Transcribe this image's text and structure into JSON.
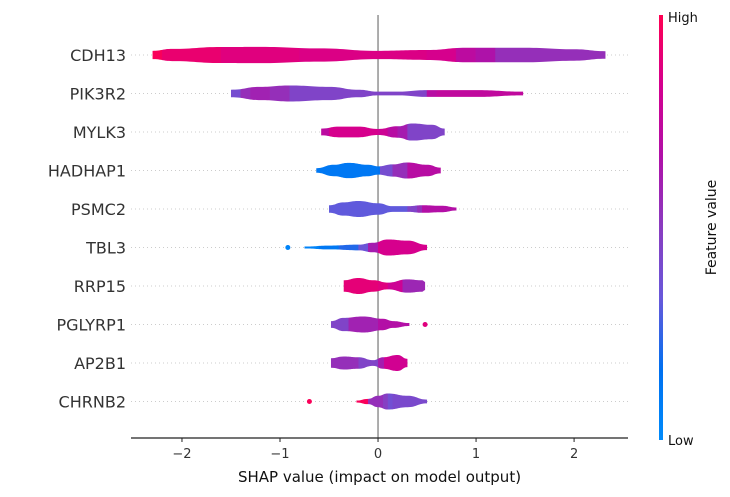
{
  "chart_data": {
    "type": "violin",
    "title": "",
    "xlabel": "SHAP value (impact on model output)",
    "ylabel": "",
    "xlim": [
      -2.52,
      2.55
    ],
    "xticks": [
      -2,
      -1,
      0,
      1,
      2
    ],
    "xtick_labels": [
      "−2",
      "−1",
      "0",
      "1",
      "2"
    ],
    "zero_line": true,
    "grid": "dotted horizontal row guides",
    "colorbar": {
      "title": "Feature value",
      "high_label": "High",
      "low_label": "Low",
      "placement": "right",
      "colors": [
        "#008bfb",
        "#0070f0",
        "#6858da",
        "#8a3cc0",
        "#b010a8",
        "#d4008f",
        "#ff0052"
      ]
    },
    "features": [
      {
        "name": "CDH13",
        "min": -2.3,
        "max": 2.32,
        "profile": [
          [
            -2.3,
            0.22
          ],
          [
            -2.1,
            0.32
          ],
          [
            -1.6,
            0.42
          ],
          [
            -1.2,
            0.43
          ],
          [
            -0.6,
            0.35
          ],
          [
            0,
            0.22
          ],
          [
            0.5,
            0.26
          ],
          [
            0.9,
            0.38
          ],
          [
            1.5,
            0.38
          ],
          [
            2.0,
            0.3
          ],
          [
            2.32,
            0.2
          ]
        ],
        "colors": [
          [
            -2.3,
            0.98
          ],
          [
            -2.2,
            0.92
          ],
          [
            -1.6,
            0.88
          ],
          [
            -0.8,
            0.86
          ],
          [
            0.5,
            0.84
          ],
          [
            0.8,
            0.72
          ],
          [
            1.0,
            0.66
          ],
          [
            1.2,
            0.55
          ],
          [
            2.32,
            0.55
          ]
        ],
        "outliers": []
      },
      {
        "name": "PIK3R2",
        "min": -1.5,
        "max": 1.48,
        "profile": [
          [
            -1.5,
            0.2
          ],
          [
            -1.2,
            0.35
          ],
          [
            -0.9,
            0.42
          ],
          [
            -0.5,
            0.35
          ],
          [
            -0.2,
            0.2
          ],
          [
            0,
            0.1
          ],
          [
            0.2,
            0.1
          ],
          [
            0.5,
            0.18
          ],
          [
            1.0,
            0.18
          ],
          [
            1.48,
            0.1
          ]
        ],
        "colors": [
          [
            -1.5,
            0.4
          ],
          [
            -1.4,
            0.55
          ],
          [
            -1.3,
            0.6
          ],
          [
            -1.1,
            0.55
          ],
          [
            -0.9,
            0.45
          ],
          [
            0.2,
            0.45
          ],
          [
            0.5,
            0.7
          ],
          [
            0.6,
            0.74
          ],
          [
            1.48,
            0.74
          ]
        ],
        "outliers": []
      },
      {
        "name": "MYLK3",
        "min": -0.58,
        "max": 0.68,
        "profile": [
          [
            -0.58,
            0.18
          ],
          [
            -0.4,
            0.28
          ],
          [
            -0.2,
            0.28
          ],
          [
            0,
            0.16
          ],
          [
            0.2,
            0.3
          ],
          [
            0.35,
            0.45
          ],
          [
            0.55,
            0.38
          ],
          [
            0.68,
            0.18
          ]
        ],
        "colors": [
          [
            -0.58,
            0.72
          ],
          [
            -0.5,
            0.84
          ],
          [
            0,
            0.8
          ],
          [
            0.1,
            0.7
          ],
          [
            0.2,
            0.62
          ],
          [
            0.3,
            0.45
          ],
          [
            0.68,
            0.45
          ]
        ],
        "outliers": []
      },
      {
        "name": "HADHAP1",
        "min": -0.63,
        "max": 0.64,
        "profile": [
          [
            -0.63,
            0.12
          ],
          [
            -0.45,
            0.3
          ],
          [
            -0.3,
            0.4
          ],
          [
            -0.1,
            0.3
          ],
          [
            0,
            0.22
          ],
          [
            0.15,
            0.32
          ],
          [
            0.3,
            0.42
          ],
          [
            0.5,
            0.3
          ],
          [
            0.64,
            0.15
          ]
        ],
        "colors": [
          [
            -0.63,
            0.12
          ],
          [
            0,
            0.15
          ],
          [
            0.02,
            0.4
          ],
          [
            0.15,
            0.55
          ],
          [
            0.3,
            0.7
          ],
          [
            0.64,
            0.7
          ]
        ],
        "outliers": []
      },
      {
        "name": "PSMC2",
        "min": -0.5,
        "max": 0.8,
        "profile": [
          [
            -0.5,
            0.2
          ],
          [
            -0.35,
            0.35
          ],
          [
            -0.2,
            0.42
          ],
          [
            0,
            0.3
          ],
          [
            0.15,
            0.15
          ],
          [
            0.3,
            0.15
          ],
          [
            0.45,
            0.2
          ],
          [
            0.65,
            0.17
          ],
          [
            0.8,
            0.08
          ]
        ],
        "colors": [
          [
            -0.5,
            0.32
          ],
          [
            0,
            0.32
          ],
          [
            0.3,
            0.45
          ],
          [
            0.4,
            0.55
          ],
          [
            0.45,
            0.68
          ],
          [
            0.8,
            0.68
          ]
        ],
        "outliers": []
      },
      {
        "name": "TBL3",
        "min": -0.75,
        "max": 0.5,
        "profile": [
          [
            -0.75,
            0.05
          ],
          [
            -0.5,
            0.1
          ],
          [
            -0.2,
            0.15
          ],
          [
            -0.05,
            0.25
          ],
          [
            0.1,
            0.42
          ],
          [
            0.3,
            0.36
          ],
          [
            0.5,
            0.14
          ]
        ],
        "colors": [
          [
            -0.75,
            0.05
          ],
          [
            -0.6,
            0.12
          ],
          [
            -0.4,
            0.22
          ],
          [
            -0.2,
            0.35
          ],
          [
            -0.1,
            0.62
          ],
          [
            0.0,
            0.84
          ],
          [
            0.5,
            0.84
          ]
        ],
        "outliers": [
          {
            "x": -0.92,
            "value": 0.05
          }
        ]
      },
      {
        "name": "RRP15",
        "min": -0.35,
        "max": 0.48,
        "profile": [
          [
            -0.35,
            0.3
          ],
          [
            -0.2,
            0.42
          ],
          [
            -0.05,
            0.3
          ],
          [
            0.1,
            0.18
          ],
          [
            0.3,
            0.35
          ],
          [
            0.45,
            0.3
          ],
          [
            0.48,
            0.22
          ]
        ],
        "colors": [
          [
            -0.35,
            0.9
          ],
          [
            0.0,
            0.88
          ],
          [
            0.1,
            0.8
          ],
          [
            0.25,
            0.58
          ],
          [
            0.48,
            0.58
          ]
        ],
        "outliers": []
      },
      {
        "name": "PGLYRP1",
        "min": -0.48,
        "max": 0.32,
        "profile": [
          [
            -0.48,
            0.18
          ],
          [
            -0.35,
            0.35
          ],
          [
            -0.15,
            0.42
          ],
          [
            0.05,
            0.3
          ],
          [
            0.15,
            0.18
          ],
          [
            0.32,
            0.08
          ]
        ],
        "colors": [
          [
            -0.48,
            0.45
          ],
          [
            -0.3,
            0.6
          ],
          [
            0.0,
            0.68
          ],
          [
            0.32,
            0.7
          ]
        ],
        "outliers": [
          {
            "x": 0.48,
            "value": 0.88
          }
        ]
      },
      {
        "name": "AP2B1",
        "min": -0.48,
        "max": 0.3,
        "profile": [
          [
            -0.48,
            0.25
          ],
          [
            -0.35,
            0.34
          ],
          [
            -0.2,
            0.3
          ],
          [
            -0.05,
            0.15
          ],
          [
            0.05,
            0.3
          ],
          [
            0.2,
            0.42
          ],
          [
            0.3,
            0.22
          ]
        ],
        "colors": [
          [
            -0.48,
            0.55
          ],
          [
            -0.2,
            0.45
          ],
          [
            0.0,
            0.62
          ],
          [
            0.06,
            0.82
          ],
          [
            0.3,
            0.82
          ]
        ],
        "outliers": []
      },
      {
        "name": "CHRNB2",
        "min": -0.22,
        "max": 0.5,
        "profile": [
          [
            -0.22,
            0.05
          ],
          [
            -0.1,
            0.14
          ],
          [
            0.0,
            0.3
          ],
          [
            0.1,
            0.42
          ],
          [
            0.3,
            0.3
          ],
          [
            0.5,
            0.1
          ]
        ],
        "colors": [
          [
            -0.22,
            0.98
          ],
          [
            -0.1,
            0.55
          ],
          [
            0.05,
            0.48
          ],
          [
            0.1,
            0.38
          ],
          [
            0.15,
            0.42
          ],
          [
            0.5,
            0.42
          ]
        ],
        "outliers": [
          {
            "x": -0.7,
            "value": 0.98
          }
        ]
      }
    ]
  }
}
